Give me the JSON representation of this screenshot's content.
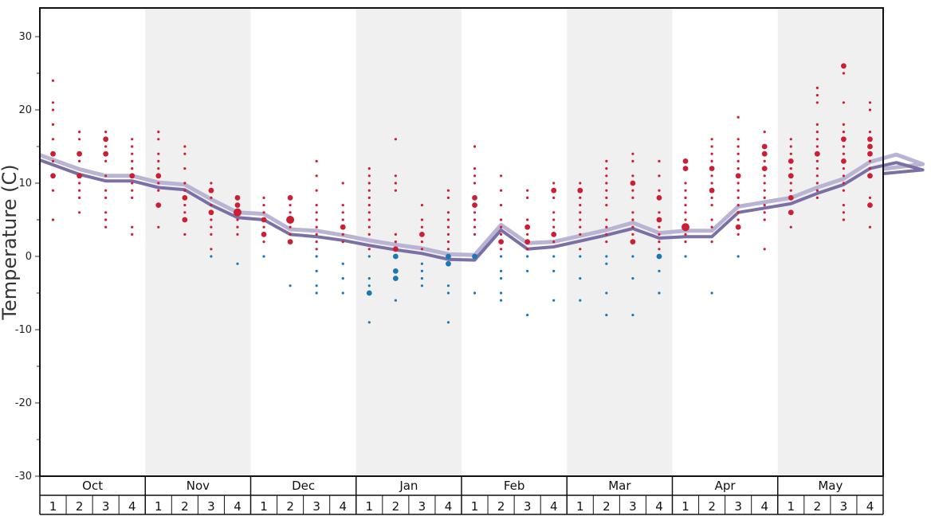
{
  "chart_data": {
    "type": "scatter",
    "title": "",
    "xlabel": "",
    "ylabel": "Temperature (C)",
    "ylim": [
      -30,
      35
    ],
    "yticks": [
      -30,
      -20,
      -10,
      0,
      10,
      20,
      30
    ],
    "months": [
      "Oct",
      "Nov",
      "Dec",
      "Jan",
      "Feb",
      "Mar",
      "Apr",
      "May"
    ],
    "week_labels": [
      "1",
      "2",
      "3",
      "4"
    ],
    "shaded_months": [
      "Nov",
      "Jan",
      "Mar",
      "May"
    ],
    "colors": {
      "warm": "#cc1f33",
      "cold": "#1a78b6",
      "line_dark": "#7b6fa6",
      "line_light": "#b9b4d3",
      "shade": "#f0f0f0"
    },
    "series": [
      {
        "name": "dark line",
        "values": [
          12.5,
          11.2,
          10.3,
          10.3,
          9.4,
          9.1,
          7.0,
          5.3,
          5.0,
          3.0,
          2.7,
          2.2,
          1.5,
          0.9,
          0.4,
          -0.4,
          -0.5,
          3.6,
          1.0,
          1.3,
          2.1,
          2.9,
          3.8,
          2.5,
          2.7,
          2.7,
          6.0,
          6.6,
          7.2,
          8.6,
          9.8,
          12.0,
          12.8,
          11.8
        ]
      },
      {
        "name": "light line",
        "values": [
          13.2,
          11.9,
          11.0,
          11.0,
          10.1,
          9.8,
          7.8,
          6.0,
          5.8,
          3.7,
          3.5,
          2.9,
          2.2,
          1.6,
          1.1,
          0.3,
          0.2,
          4.3,
          1.8,
          2.0,
          2.8,
          3.6,
          4.6,
          3.2,
          3.5,
          3.5,
          6.8,
          7.4,
          8.0,
          9.4,
          10.6,
          12.9,
          13.9,
          12.6
        ]
      }
    ],
    "points": [
      [
        [
          24,
          1
        ],
        [
          21,
          1
        ],
        [
          20,
          1
        ],
        [
          18,
          1
        ],
        [
          16,
          1
        ],
        [
          14,
          2
        ],
        [
          13,
          1
        ],
        [
          11,
          2
        ],
        [
          9,
          1
        ],
        [
          5,
          1
        ]
      ],
      [
        [
          17,
          1
        ],
        [
          16,
          1
        ],
        [
          14,
          2
        ],
        [
          13,
          1
        ],
        [
          11,
          2
        ],
        [
          10,
          1
        ],
        [
          9,
          1
        ],
        [
          8,
          1
        ],
        [
          6,
          1
        ]
      ],
      [
        [
          17,
          1
        ],
        [
          16,
          2
        ],
        [
          15,
          1
        ],
        [
          14,
          2
        ],
        [
          13,
          1
        ],
        [
          11,
          1
        ],
        [
          9,
          1
        ],
        [
          8,
          1
        ],
        [
          6,
          1
        ],
        [
          5,
          1
        ],
        [
          4,
          1
        ]
      ],
      [
        [
          16,
          1
        ],
        [
          15,
          1
        ],
        [
          14,
          1
        ],
        [
          13,
          1
        ],
        [
          12,
          1
        ],
        [
          11,
          2
        ],
        [
          10,
          1
        ],
        [
          9,
          1
        ],
        [
          8,
          1
        ],
        [
          4,
          1
        ],
        [
          3,
          1
        ]
      ],
      [
        [
          17,
          1
        ],
        [
          16,
          1
        ],
        [
          14,
          1
        ],
        [
          13,
          1
        ],
        [
          12,
          1
        ],
        [
          11,
          2
        ],
        [
          10,
          1
        ],
        [
          9,
          1
        ],
        [
          7,
          2
        ],
        [
          4,
          1
        ]
      ],
      [
        [
          15,
          1
        ],
        [
          14,
          1
        ],
        [
          12,
          1
        ],
        [
          10,
          1
        ],
        [
          9,
          1
        ],
        [
          8,
          2
        ],
        [
          7,
          1
        ],
        [
          6,
          1
        ],
        [
          5,
          2
        ],
        [
          3,
          1
        ]
      ],
      [
        [
          10,
          1
        ],
        [
          9,
          2
        ],
        [
          8,
          1
        ],
        [
          7,
          1
        ],
        [
          6,
          2
        ],
        [
          5,
          1
        ],
        [
          4,
          1
        ],
        [
          3,
          1
        ],
        [
          1,
          1
        ],
        [
          0,
          1
        ]
      ],
      [
        [
          8,
          2
        ],
        [
          7,
          2
        ],
        [
          6,
          3
        ],
        [
          5,
          1
        ],
        [
          4,
          1
        ],
        [
          3,
          1
        ],
        [
          -1,
          1
        ]
      ],
      [
        [
          8,
          1
        ],
        [
          7,
          1
        ],
        [
          6,
          1
        ],
        [
          5,
          2
        ],
        [
          4,
          1
        ],
        [
          3,
          2
        ],
        [
          2,
          1
        ],
        [
          0,
          1
        ]
      ],
      [
        [
          8,
          2
        ],
        [
          7,
          1
        ],
        [
          6,
          1
        ],
        [
          5,
          3
        ],
        [
          4,
          1
        ],
        [
          3,
          1
        ],
        [
          2,
          2
        ],
        [
          -4,
          1
        ]
      ],
      [
        [
          13,
          1
        ],
        [
          11,
          1
        ],
        [
          9,
          1
        ],
        [
          7,
          1
        ],
        [
          6,
          1
        ],
        [
          5,
          1
        ],
        [
          4,
          1
        ],
        [
          3,
          1
        ],
        [
          2,
          1
        ],
        [
          1,
          1
        ],
        [
          0,
          1
        ],
        [
          -2,
          1
        ],
        [
          -4,
          1
        ],
        [
          -5,
          1
        ]
      ],
      [
        [
          10,
          1
        ],
        [
          7,
          1
        ],
        [
          6,
          1
        ],
        [
          5,
          1
        ],
        [
          4,
          2
        ],
        [
          3,
          1
        ],
        [
          2,
          1
        ],
        [
          -1,
          1
        ],
        [
          -3,
          1
        ],
        [
          -5,
          1
        ]
      ],
      [
        [
          12,
          1
        ],
        [
          11,
          1
        ],
        [
          10,
          1
        ],
        [
          9,
          1
        ],
        [
          8,
          1
        ],
        [
          7,
          1
        ],
        [
          6,
          1
        ],
        [
          5,
          1
        ],
        [
          4,
          1
        ],
        [
          3,
          1
        ],
        [
          1,
          1
        ],
        [
          0,
          1
        ],
        [
          -3,
          1
        ],
        [
          -4,
          1
        ],
        [
          -5,
          2
        ],
        [
          -9,
          1
        ]
      ],
      [
        [
          16,
          1
        ],
        [
          11,
          1
        ],
        [
          10,
          1
        ],
        [
          9,
          1
        ],
        [
          3,
          1
        ],
        [
          2,
          1
        ],
        [
          1,
          2
        ],
        [
          0,
          2
        ],
        [
          -2,
          2
        ],
        [
          -3,
          2
        ],
        [
          -6,
          1
        ]
      ],
      [
        [
          7,
          1
        ],
        [
          5,
          1
        ],
        [
          4,
          1
        ],
        [
          3,
          2
        ],
        [
          2,
          1
        ],
        [
          1,
          1
        ],
        [
          -1,
          1
        ],
        [
          -2,
          1
        ],
        [
          -3,
          1
        ],
        [
          -4,
          1
        ]
      ],
      [
        [
          9,
          1
        ],
        [
          8,
          1
        ],
        [
          6,
          1
        ],
        [
          5,
          1
        ],
        [
          4,
          1
        ],
        [
          3,
          1
        ],
        [
          2,
          1
        ],
        [
          1,
          1
        ],
        [
          0,
          2
        ],
        [
          -1,
          2
        ],
        [
          -4,
          1
        ],
        [
          -5,
          1
        ],
        [
          -9,
          1
        ]
      ],
      [
        [
          15,
          1
        ],
        [
          12,
          1
        ],
        [
          11,
          1
        ],
        [
          10,
          1
        ],
        [
          8,
          2
        ],
        [
          7,
          2
        ],
        [
          6,
          1
        ],
        [
          5,
          1
        ],
        [
          4,
          1
        ],
        [
          3,
          1
        ],
        [
          0,
          2
        ],
        [
          -5,
          1
        ]
      ],
      [
        [
          11,
          1
        ],
        [
          9,
          1
        ],
        [
          7,
          1
        ],
        [
          5,
          1
        ],
        [
          4,
          1
        ],
        [
          3,
          1
        ],
        [
          2,
          2
        ],
        [
          1,
          1
        ],
        [
          0,
          1
        ],
        [
          -2,
          1
        ],
        [
          -3,
          1
        ],
        [
          -5,
          1
        ],
        [
          -6,
          1
        ]
      ],
      [
        [
          9,
          1
        ],
        [
          8,
          1
        ],
        [
          5,
          1
        ],
        [
          4,
          2
        ],
        [
          3,
          1
        ],
        [
          2,
          2
        ],
        [
          1,
          1
        ],
        [
          0,
          1
        ],
        [
          -2,
          1
        ],
        [
          -8,
          1
        ]
      ],
      [
        [
          10,
          1
        ],
        [
          9,
          2
        ],
        [
          8,
          1
        ],
        [
          6,
          1
        ],
        [
          5,
          1
        ],
        [
          4,
          1
        ],
        [
          3,
          2
        ],
        [
          2,
          1
        ],
        [
          0,
          1
        ],
        [
          -2,
          1
        ],
        [
          -6,
          1
        ]
      ],
      [
        [
          10,
          1
        ],
        [
          9,
          2
        ],
        [
          8,
          1
        ],
        [
          7,
          1
        ],
        [
          6,
          1
        ],
        [
          5,
          1
        ],
        [
          4,
          1
        ],
        [
          3,
          1
        ],
        [
          1,
          1
        ],
        [
          0,
          1
        ],
        [
          -3,
          1
        ],
        [
          -6,
          1
        ]
      ],
      [
        [
          13,
          1
        ],
        [
          12,
          1
        ],
        [
          11,
          1
        ],
        [
          10,
          1
        ],
        [
          9,
          1
        ],
        [
          8,
          1
        ],
        [
          7,
          1
        ],
        [
          5,
          1
        ],
        [
          4,
          1
        ],
        [
          3,
          1
        ],
        [
          2,
          1
        ],
        [
          0,
          1
        ],
        [
          -1,
          1
        ],
        [
          -5,
          1
        ],
        [
          -8,
          1
        ]
      ],
      [
        [
          14,
          1
        ],
        [
          13,
          1
        ],
        [
          11,
          1
        ],
        [
          10,
          2
        ],
        [
          9,
          1
        ],
        [
          8,
          1
        ],
        [
          6,
          1
        ],
        [
          5,
          1
        ],
        [
          4,
          1
        ],
        [
          3,
          1
        ],
        [
          2,
          2
        ],
        [
          0,
          1
        ],
        [
          -3,
          1
        ],
        [
          -8,
          1
        ]
      ],
      [
        [
          13,
          1
        ],
        [
          11,
          1
        ],
        [
          9,
          1
        ],
        [
          8,
          2
        ],
        [
          6,
          1
        ],
        [
          5,
          2
        ],
        [
          4,
          1
        ],
        [
          3,
          1
        ],
        [
          2,
          1
        ],
        [
          1,
          1
        ],
        [
          0,
          2
        ],
        [
          -2,
          1
        ],
        [
          -5,
          1
        ]
      ],
      [
        [
          13,
          2
        ],
        [
          12,
          2
        ],
        [
          10,
          1
        ],
        [
          9,
          1
        ],
        [
          8,
          1
        ],
        [
          7,
          1
        ],
        [
          6,
          1
        ],
        [
          5,
          1
        ],
        [
          4,
          3
        ],
        [
          3,
          1
        ],
        [
          2,
          1
        ],
        [
          0,
          1
        ]
      ],
      [
        [
          16,
          1
        ],
        [
          15,
          1
        ],
        [
          14,
          1
        ],
        [
          13,
          1
        ],
        [
          12,
          2
        ],
        [
          11,
          1
        ],
        [
          10,
          1
        ],
        [
          9,
          2
        ],
        [
          8,
          1
        ],
        [
          7,
          1
        ],
        [
          5,
          1
        ],
        [
          4,
          1
        ],
        [
          2,
          1
        ],
        [
          -5,
          1
        ]
      ],
      [
        [
          19,
          1
        ],
        [
          16,
          1
        ],
        [
          15,
          1
        ],
        [
          14,
          1
        ],
        [
          13,
          1
        ],
        [
          12,
          1
        ],
        [
          11,
          2
        ],
        [
          10,
          1
        ],
        [
          9,
          1
        ],
        [
          8,
          1
        ],
        [
          7,
          1
        ],
        [
          6,
          1
        ],
        [
          5,
          1
        ],
        [
          4,
          2
        ],
        [
          3,
          1
        ],
        [
          0,
          1
        ]
      ],
      [
        [
          17,
          1
        ],
        [
          15,
          2
        ],
        [
          14,
          2
        ],
        [
          13,
          1
        ],
        [
          12,
          2
        ],
        [
          11,
          1
        ],
        [
          10,
          1
        ],
        [
          9,
          1
        ],
        [
          8,
          1
        ],
        [
          7,
          1
        ],
        [
          6,
          1
        ],
        [
          5,
          1
        ],
        [
          1,
          1
        ]
      ],
      [
        [
          16,
          1
        ],
        [
          15,
          1
        ],
        [
          14,
          1
        ],
        [
          13,
          2
        ],
        [
          12,
          1
        ],
        [
          11,
          2
        ],
        [
          10,
          1
        ],
        [
          9,
          1
        ],
        [
          8,
          2
        ],
        [
          6,
          2
        ],
        [
          4,
          1
        ]
      ],
      [
        [
          23,
          1
        ],
        [
          22,
          1
        ],
        [
          21,
          1
        ],
        [
          18,
          1
        ],
        [
          17,
          1
        ],
        [
          16,
          1
        ],
        [
          15,
          1
        ],
        [
          14,
          2
        ],
        [
          13,
          1
        ],
        [
          12,
          1
        ],
        [
          11,
          1
        ],
        [
          10,
          1
        ],
        [
          9,
          1
        ],
        [
          8,
          1
        ]
      ],
      [
        [
          26,
          2
        ],
        [
          25,
          1
        ],
        [
          21,
          1
        ],
        [
          18,
          1
        ],
        [
          17,
          1
        ],
        [
          16,
          2
        ],
        [
          15,
          1
        ],
        [
          14,
          1
        ],
        [
          13,
          2
        ],
        [
          12,
          1
        ],
        [
          11,
          1
        ],
        [
          10,
          1
        ],
        [
          9,
          1
        ],
        [
          7,
          1
        ],
        [
          6,
          1
        ],
        [
          5,
          1
        ]
      ],
      [
        [
          21,
          1
        ],
        [
          20,
          1
        ],
        [
          17,
          1
        ],
        [
          16,
          2
        ],
        [
          15,
          2
        ],
        [
          14,
          2
        ],
        [
          13,
          1
        ],
        [
          12,
          1
        ],
        [
          11,
          2
        ],
        [
          8,
          1
        ],
        [
          7,
          2
        ],
        [
          4,
          1
        ]
      ]
    ]
  }
}
